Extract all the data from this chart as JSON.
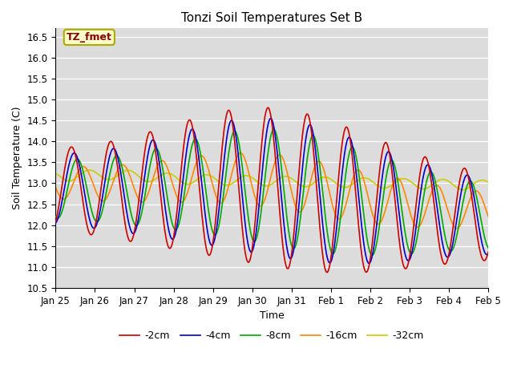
{
  "title": "Tonzi Soil Temperatures Set B",
  "xlabel": "Time",
  "ylabel": "Soil Temperature (C)",
  "annotation": "TZ_fmet",
  "ylim": [
    10.5,
    16.7
  ],
  "series_colors": {
    "-2cm": "#cc0000",
    "-4cm": "#0000cc",
    "-8cm": "#00aa00",
    "-16cm": "#ff8800",
    "-32cm": "#cccc00"
  },
  "legend_labels": [
    "-2cm",
    "-4cm",
    "-8cm",
    "-16cm",
    "-32cm"
  ],
  "tick_labels": [
    "Jan 25",
    "Jan 26",
    "Jan 27",
    "Jan 28",
    "Jan 29",
    "Jan 30",
    "Jan 31",
    "Feb 1",
    "Feb 2",
    "Feb 3",
    "Feb 4",
    "Feb 5"
  ],
  "yticks": [
    10.5,
    11.0,
    11.5,
    12.0,
    12.5,
    13.0,
    13.5,
    14.0,
    14.5,
    15.0,
    15.5,
    16.0,
    16.5
  ]
}
